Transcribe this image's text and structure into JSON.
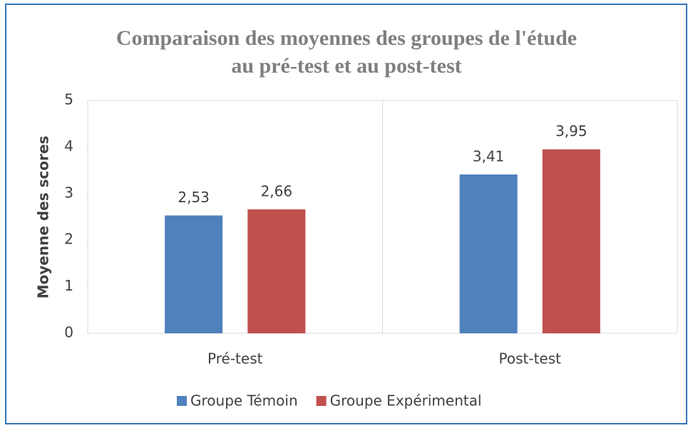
{
  "chart_data": {
    "type": "bar",
    "title": "Comparaison des moyennes des groupes de l'étude au pré-test et au post-test",
    "ylabel": "Moyenne des scores",
    "categories": [
      "Pré-test",
      "Post-test"
    ],
    "series": [
      {
        "name": "Groupe Témoin",
        "color": "#4f81bd",
        "values": [
          2.53,
          3.41
        ],
        "value_labels": [
          "2,53",
          "3,41"
        ]
      },
      {
        "name": "Groupe Expérimental",
        "color": "#c0504d",
        "values": [
          2.66,
          3.95
        ],
        "value_labels": [
          "2,66",
          "3,95"
        ]
      }
    ],
    "ylim": [
      0,
      5
    ],
    "yticks": [
      0,
      1,
      2,
      3,
      4,
      5
    ],
    "grid": false,
    "legend": "bottom"
  }
}
